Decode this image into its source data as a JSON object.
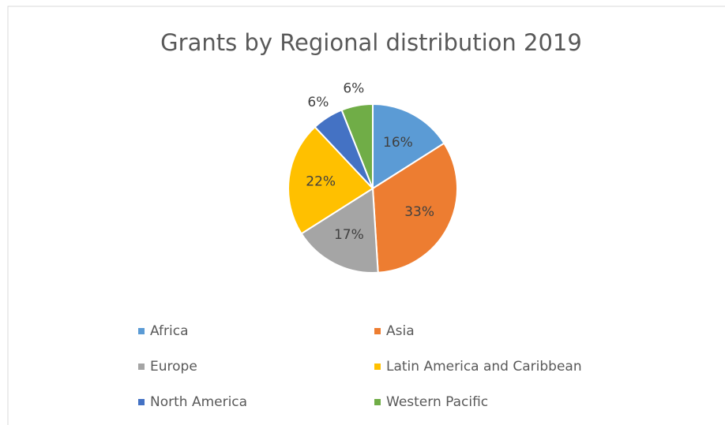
{
  "chart_data": {
    "type": "pie",
    "title": "Grants by Regional distribution 2019",
    "categories": [
      "Africa",
      "Asia",
      "Europe",
      "Latin America and Caribbean",
      "North America",
      "Western Pacific"
    ],
    "values": [
      16,
      33,
      17,
      22,
      6,
      6
    ],
    "value_labels": [
      "16%",
      "33%",
      "17%",
      "22%",
      "6%",
      "6%"
    ],
    "colors": [
      "#5b9bd5",
      "#ed7d31",
      "#a5a5a5",
      "#ffc000",
      "#4472c4",
      "#70ad47"
    ],
    "legend": "bottom"
  }
}
